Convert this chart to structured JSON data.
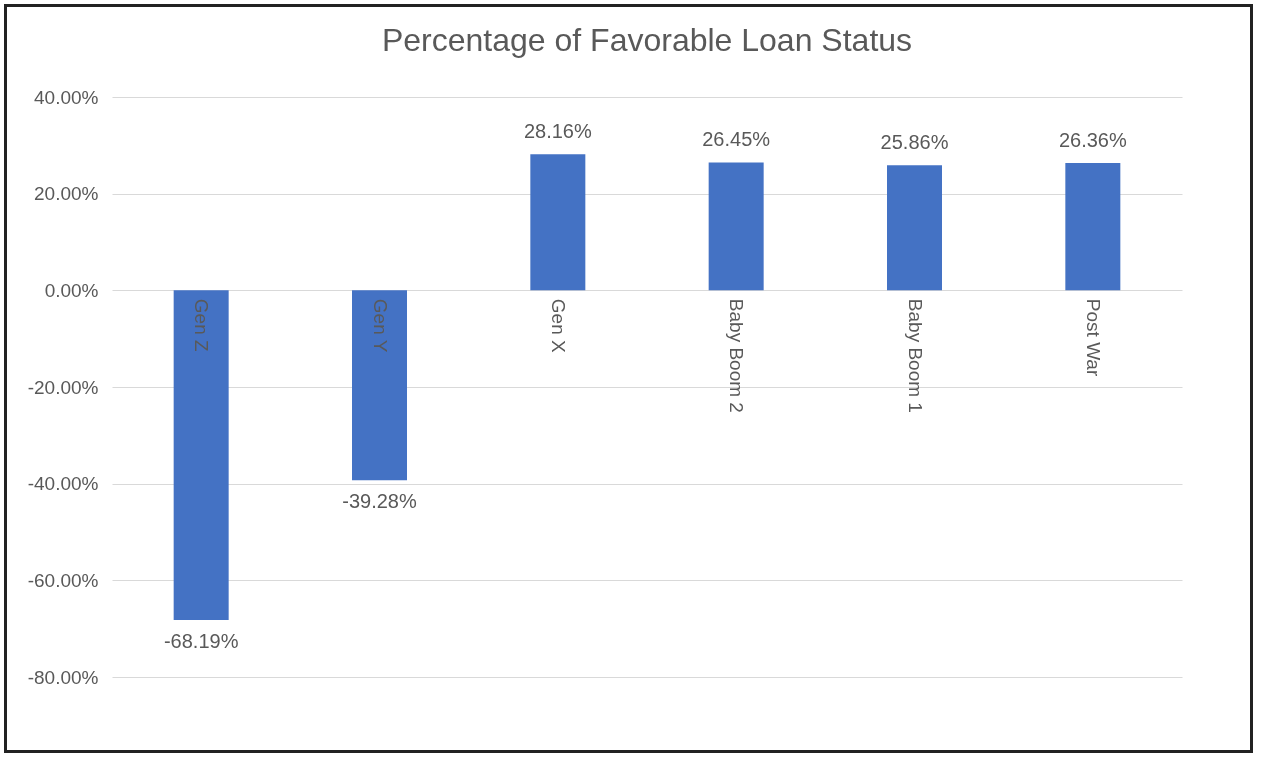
{
  "chart_data": {
    "type": "bar",
    "title": "Percentage of Favorable Loan Status",
    "categories": [
      "Gen Z",
      "Gen Y",
      "Gen X",
      "Baby Boom 2",
      "Baby Boom 1",
      "Post War"
    ],
    "values": [
      -68.19,
      -39.28,
      28.16,
      26.45,
      25.86,
      26.36
    ],
    "value_labels": [
      "-68.19%",
      "-39.28%",
      "28.16%",
      "26.45%",
      "25.86%",
      "26.36%"
    ],
    "color": "#4472c4",
    "ylim": [
      -80,
      40
    ],
    "yticks": [
      {
        "value": -80,
        "label": "-80.00%"
      },
      {
        "value": -60,
        "label": "-60.00%"
      },
      {
        "value": -40,
        "label": "-40.00%"
      },
      {
        "value": -20,
        "label": "-20.00%"
      },
      {
        "value": 0,
        "label": "0.00%"
      },
      {
        "value": 20,
        "label": "20.00%"
      },
      {
        "value": 40,
        "label": "40.00%"
      }
    ],
    "grid": "y"
  }
}
